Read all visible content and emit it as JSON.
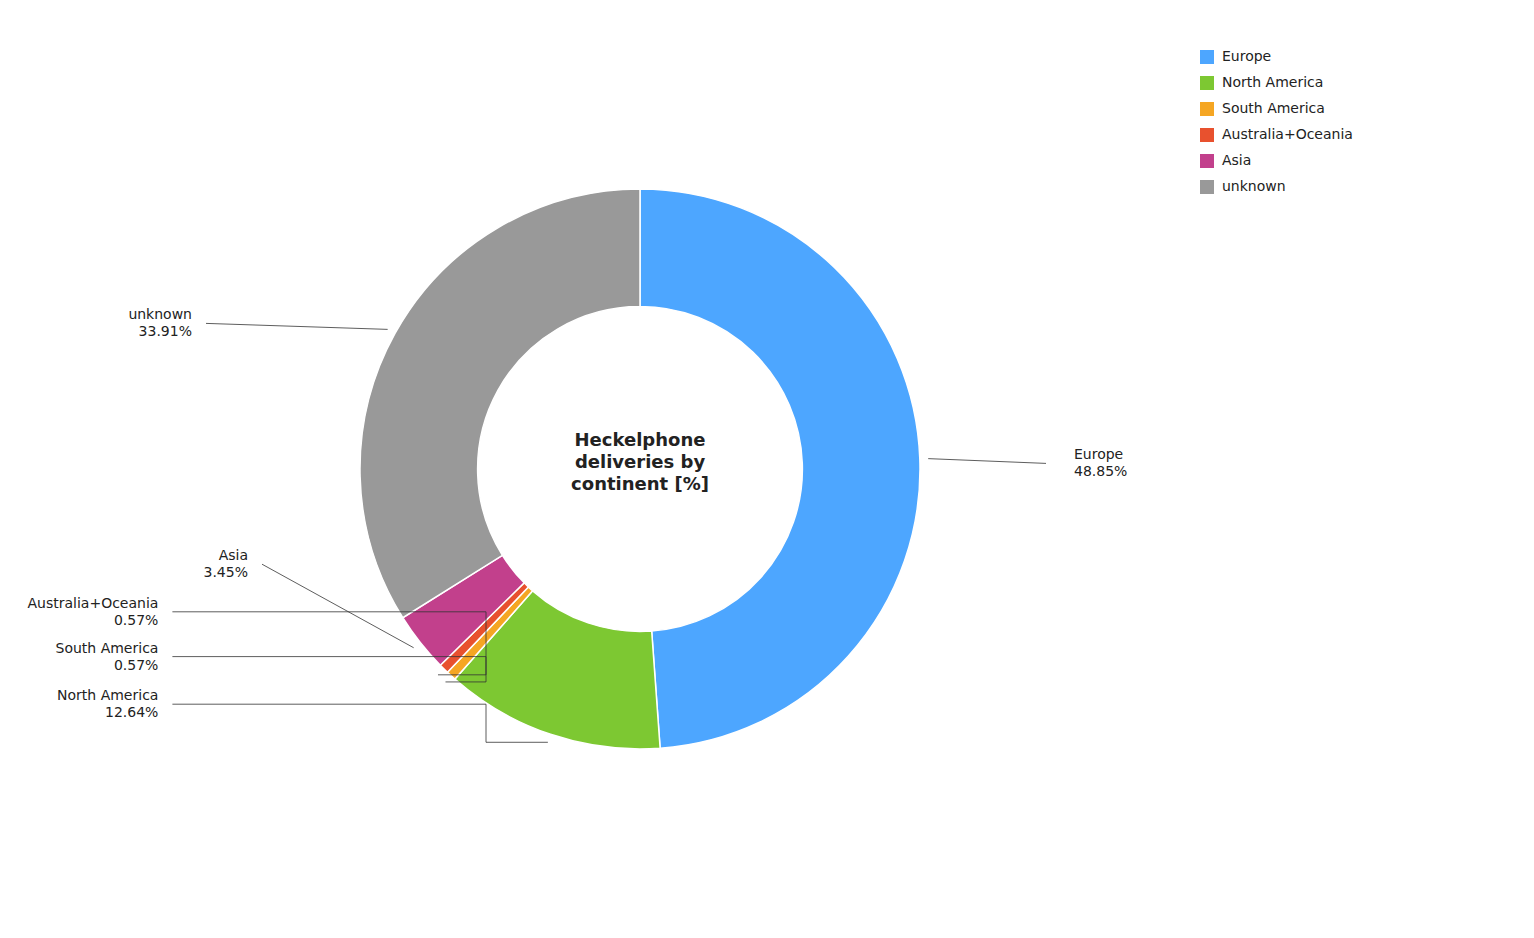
{
  "chart_data": {
    "type": "donut",
    "annotations": [
      "Heckelphone\ndeliveries by\ncontinent [%]"
    ],
    "categories": [
      "Europe",
      "North America",
      "South America",
      "Australia+Oceania",
      "Asia",
      "unknown"
    ],
    "values": [
      48.85,
      12.64,
      0.57,
      0.57,
      3.45,
      33.91
    ],
    "value_labels": [
      "48.85%",
      "12.64%",
      "0.57%",
      "0.57%",
      "3.45%",
      "33.91%"
    ],
    "colors": [
      "#4da6ff",
      "#7dc832",
      "#f5a623",
      "#e8512e",
      "#c2408c",
      "#999999"
    ],
    "data_labels": true,
    "legend": "upper right"
  }
}
